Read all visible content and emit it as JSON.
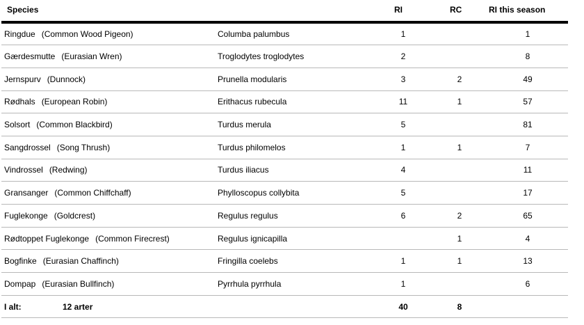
{
  "headers": {
    "species": "Species",
    "scientific": "",
    "ri": "RI",
    "rc": "RC",
    "season": "RI this season"
  },
  "rows": [
    {
      "local": "Ringdue",
      "english": "(Common Wood Pigeon)",
      "scientific": "Columba palumbus",
      "ri": "1",
      "rc": "",
      "season": "1"
    },
    {
      "local": "Gærdesmutte",
      "english": "(Eurasian Wren)",
      "scientific": "Troglodytes troglodytes",
      "ri": "2",
      "rc": "",
      "season": "8"
    },
    {
      "local": "Jernspurv",
      "english": "(Dunnock)",
      "scientific": "Prunella modularis",
      "ri": "3",
      "rc": "2",
      "season": "49"
    },
    {
      "local": "Rødhals",
      "english": "(European Robin)",
      "scientific": "Erithacus rubecula",
      "ri": "11",
      "rc": "1",
      "season": "57"
    },
    {
      "local": "Solsort",
      "english": "(Common Blackbird)",
      "scientific": "Turdus merula",
      "ri": "5",
      "rc": "",
      "season": "81"
    },
    {
      "local": "Sangdrossel",
      "english": "(Song Thrush)",
      "scientific": "Turdus philomelos",
      "ri": "1",
      "rc": "1",
      "season": "7"
    },
    {
      "local": "Vindrossel",
      "english": "(Redwing)",
      "scientific": "Turdus iliacus",
      "ri": "4",
      "rc": "",
      "season": "11"
    },
    {
      "local": "Gransanger",
      "english": "(Common Chiffchaff)",
      "scientific": "Phylloscopus collybita",
      "ri": "5",
      "rc": "",
      "season": "17"
    },
    {
      "local": "Fuglekonge",
      "english": "(Goldcrest)",
      "scientific": "Regulus regulus",
      "ri": "6",
      "rc": "2",
      "season": "65"
    },
    {
      "local": "Rødtoppet Fuglekonge",
      "english": "(Common Firecrest)",
      "scientific": "Regulus ignicapilla",
      "ri": "",
      "rc": "1",
      "season": "4"
    },
    {
      "local": "Bogfinke",
      "english": "(Eurasian Chaffinch)",
      "scientific": "Fringilla coelebs",
      "ri": "1",
      "rc": "1",
      "season": "13"
    },
    {
      "local": "Dompap",
      "english": "(Eurasian Bullfinch)",
      "scientific": "Pyrrhula pyrrhula",
      "ri": "1",
      "rc": "",
      "season": "6"
    }
  ],
  "total": {
    "label": "I alt:",
    "count": "12 arter",
    "ri": "40",
    "rc": "8",
    "season": ""
  }
}
